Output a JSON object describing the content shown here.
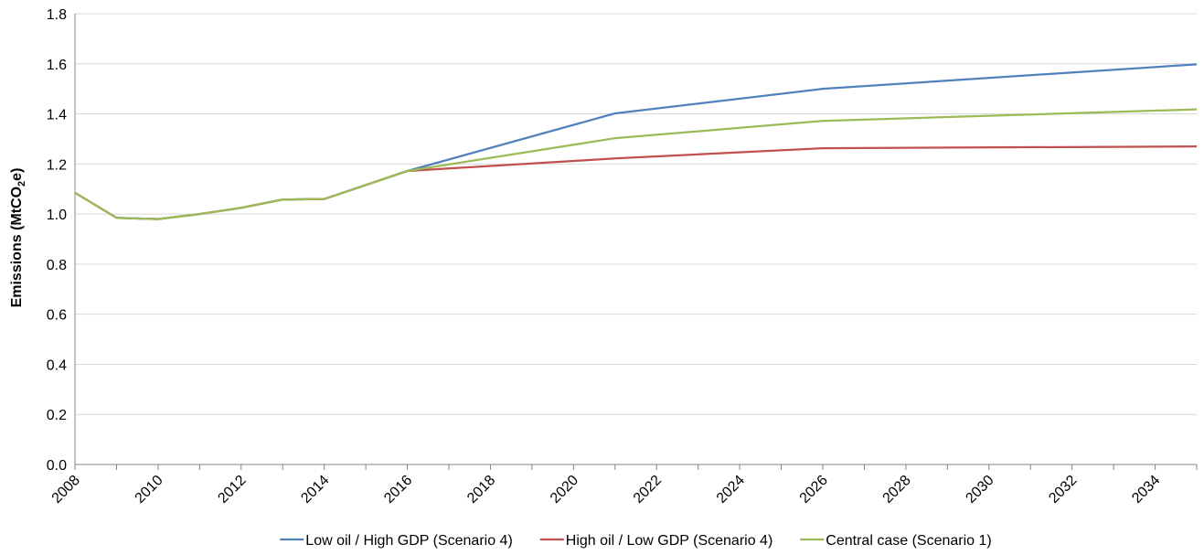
{
  "chart_data": {
    "type": "line",
    "title": "",
    "xlabel": "",
    "ylabel": "Emissions (MtCO₂e)",
    "ylabel_parts": [
      "Emissions (MtCO",
      "2",
      "e)"
    ],
    "xlim": [
      2008,
      2035
    ],
    "ylim": [
      0,
      1.8
    ],
    "x_tick_labels": [
      "2008",
      "2010",
      "2012",
      "2014",
      "2016",
      "2018",
      "2020",
      "2022",
      "2024",
      "2026",
      "2028",
      "2030",
      "2032",
      "2034"
    ],
    "y_tick_labels": [
      "0.0",
      "0.2",
      "0.4",
      "0.6",
      "0.8",
      "1.0",
      "1.2",
      "1.4",
      "1.6",
      "1.8"
    ],
    "grid": "horizontal",
    "legend_position": "bottom",
    "series": [
      {
        "name": "Low oil / High GDP (Scenario 4)",
        "color": "#4f81bd",
        "x": [
          2008,
          2009,
          2010,
          2011,
          2012,
          2013,
          2014,
          2016,
          2021,
          2026,
          2035
        ],
        "y": [
          1.085,
          0.985,
          0.98,
          1.0,
          1.025,
          1.058,
          1.06,
          1.172,
          1.402,
          1.5,
          1.598
        ]
      },
      {
        "name": "High oil / Low GDP (Scenario 4)",
        "color": "#c0504d",
        "x": [
          2008,
          2009,
          2010,
          2011,
          2012,
          2013,
          2014,
          2016,
          2021,
          2026,
          2035
        ],
        "y": [
          1.085,
          0.985,
          0.98,
          1.0,
          1.025,
          1.058,
          1.06,
          1.172,
          1.222,
          1.263,
          1.27
        ]
      },
      {
        "name": "Central case (Scenario 1)",
        "color": "#9bbb59",
        "x": [
          2008,
          2009,
          2010,
          2011,
          2012,
          2013,
          2014,
          2016,
          2021,
          2026,
          2035
        ],
        "y": [
          1.085,
          0.985,
          0.98,
          1.0,
          1.025,
          1.058,
          1.06,
          1.172,
          1.303,
          1.372,
          1.418
        ]
      }
    ]
  }
}
